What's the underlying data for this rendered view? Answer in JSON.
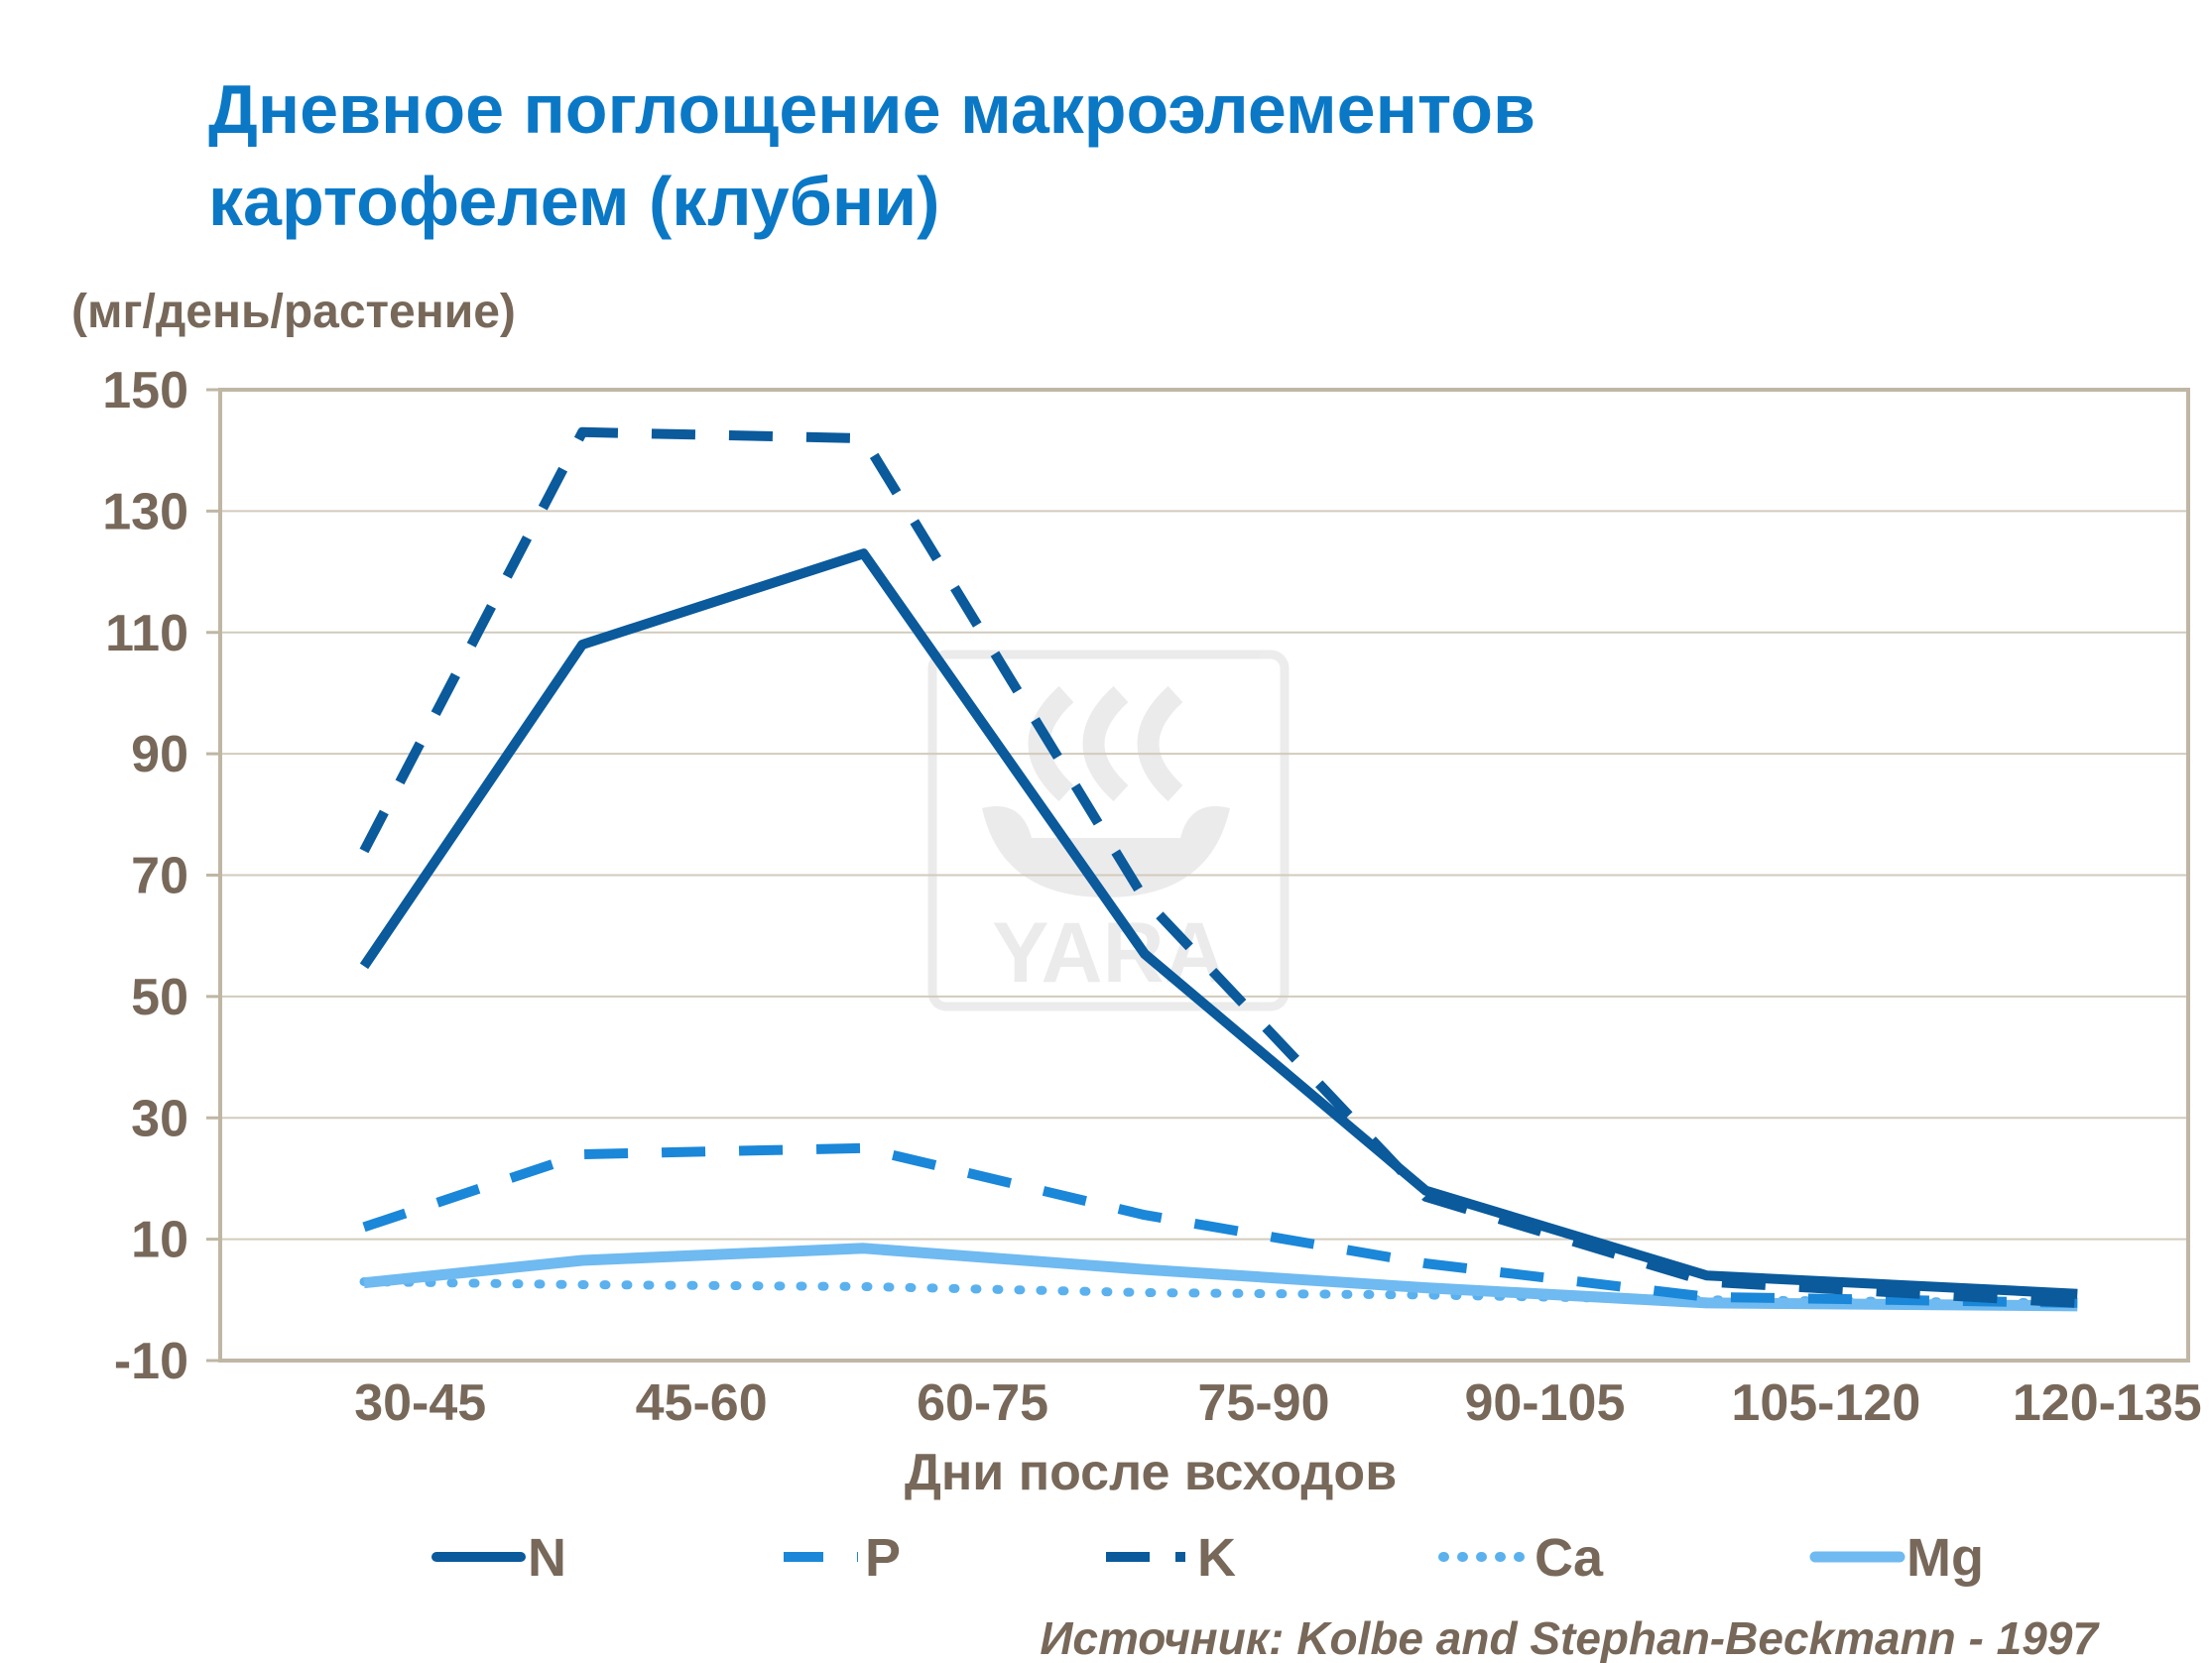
{
  "chart_data": {
    "type": "line",
    "title": [
      "Дневное поглощение макроэлементов",
      "картофелем (клубни)"
    ],
    "ylabel": "(мг/день/растение)",
    "xlabel": "Дни после всходов",
    "categories": [
      "30-45",
      "45-60",
      "60-75",
      "75-90",
      "90-105",
      "105-120",
      "120-135"
    ],
    "ylim": [
      -10,
      150
    ],
    "yticks": [
      150,
      130,
      110,
      90,
      70,
      50,
      30,
      10,
      -10
    ],
    "grid": true,
    "legend_position": "bottom",
    "series": [
      {
        "name": "N",
        "values": [
          55,
          108,
          123,
          57,
          18,
          4,
          1
        ],
        "color": "#0a5a9c",
        "style": "solid"
      },
      {
        "name": "P",
        "values": [
          12,
          24,
          25,
          14,
          6,
          0.5,
          -0.5
        ],
        "color": "#1a87d9",
        "style": "dashed"
      },
      {
        "name": "K",
        "values": [
          74,
          143,
          142,
          66,
          17,
          3,
          -0.5
        ],
        "color": "#0a5a9c",
        "style": "dashdot"
      },
      {
        "name": "Ca",
        "values": [
          3,
          2.5,
          2.2,
          1.2,
          0.8,
          0,
          -0.5
        ],
        "color": "#5ab1ee",
        "style": "dotted"
      },
      {
        "name": "Mg",
        "values": [
          2.8,
          6.5,
          8.5,
          5,
          2,
          -0.5,
          -1
        ],
        "color": "#6fbaf0",
        "style": "solid"
      }
    ],
    "source": "Источник:  Kolbe and Stephan-Beckmann  - 1997",
    "watermark": "YARA"
  }
}
